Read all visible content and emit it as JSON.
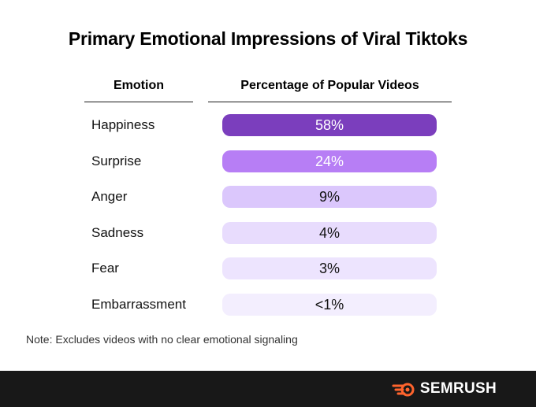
{
  "title": "Primary Emotional Impressions of Viral Tiktoks",
  "headers": {
    "emotion": "Emotion",
    "percentage": "Percentage of Popular Videos"
  },
  "note": "Note: Excludes videos with no clear emotional signaling",
  "brand": {
    "name": "SEMRUSH",
    "color": "#ff642d"
  },
  "chart_data": {
    "type": "table",
    "title": "Primary Emotional Impressions of Viral Tiktoks",
    "columns": [
      "Emotion",
      "Percentage of Popular Videos"
    ],
    "categories": [
      "Happiness",
      "Surprise",
      "Anger",
      "Sadness",
      "Fear",
      "Embarrassment"
    ],
    "labels": [
      "58%",
      "24%",
      "9%",
      "4%",
      "3%",
      "<1%"
    ],
    "values": [
      58,
      24,
      9,
      4,
      3,
      0.5
    ],
    "colors": [
      "#7b3ebd",
      "#b77ef5",
      "#dbc7fc",
      "#e8dcfd",
      "#ede4fe",
      "#f3eefe"
    ],
    "text_colors": [
      "#ffffff",
      "#ffffff",
      "#111111",
      "#111111",
      "#111111",
      "#111111"
    ]
  }
}
